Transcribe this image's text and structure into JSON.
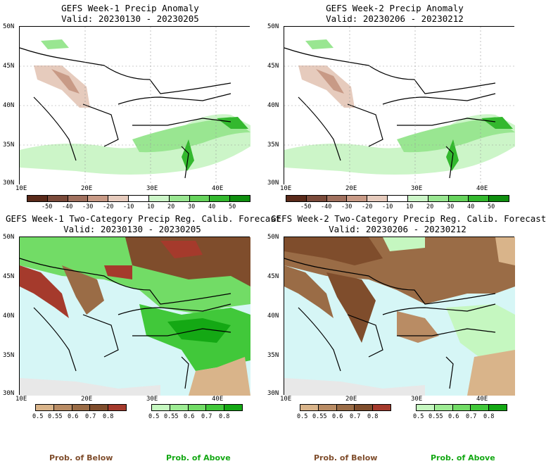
{
  "panels": [
    {
      "title": "GEFS Week-1 Precip Anomaly",
      "valid": "Valid: 20230130 - 20230205"
    },
    {
      "title": "GEFS Week-2 Precip Anomaly",
      "valid": "Valid: 20230206 - 20230212"
    },
    {
      "title": "GEFS Week-1 Two-Category Precip Reg. Calib. Forecast",
      "valid": "Valid: 20230130 - 20230205"
    },
    {
      "title": "GEFS Week-2 Two-Category Precip Reg. Calib. Forecast",
      "valid": "Valid: 20230206 - 20230212"
    }
  ],
  "axes": {
    "lat": [
      "50N",
      "45N",
      "40N",
      "35N",
      "30N"
    ],
    "lon": [
      "10E",
      "20E",
      "30E",
      "40E"
    ]
  },
  "anomaly_scale": {
    "labels": [
      "-50",
      "-40",
      "-30",
      "-20",
      "-10",
      "10",
      "20",
      "30",
      "40",
      "50"
    ],
    "colors": [
      "#5a2a1a",
      "#7a4a3a",
      "#a0705e",
      "#c89a86",
      "#e6cbbd",
      "#ffffff",
      "#ccf5c8",
      "#99e691",
      "#66d35c",
      "#33b82e",
      "#0f8f0f"
    ]
  },
  "below_scale": {
    "labels": [
      "0.5",
      "0.55",
      "0.6",
      "0.7",
      "0.8"
    ],
    "colors": [
      "#d9b48a",
      "#b98c64",
      "#9a6c46",
      "#7f4d2c",
      "#a53a2c"
    ]
  },
  "above_scale": {
    "labels": [
      "0.5",
      "0.55",
      "0.6",
      "0.7",
      "0.8"
    ],
    "colors": [
      "#c5f7c0",
      "#9eec94",
      "#72dc66",
      "#41c83a",
      "#14a814"
    ]
  },
  "prob_below": "Prob. of Below",
  "prob_above": "Prob. of Above"
}
